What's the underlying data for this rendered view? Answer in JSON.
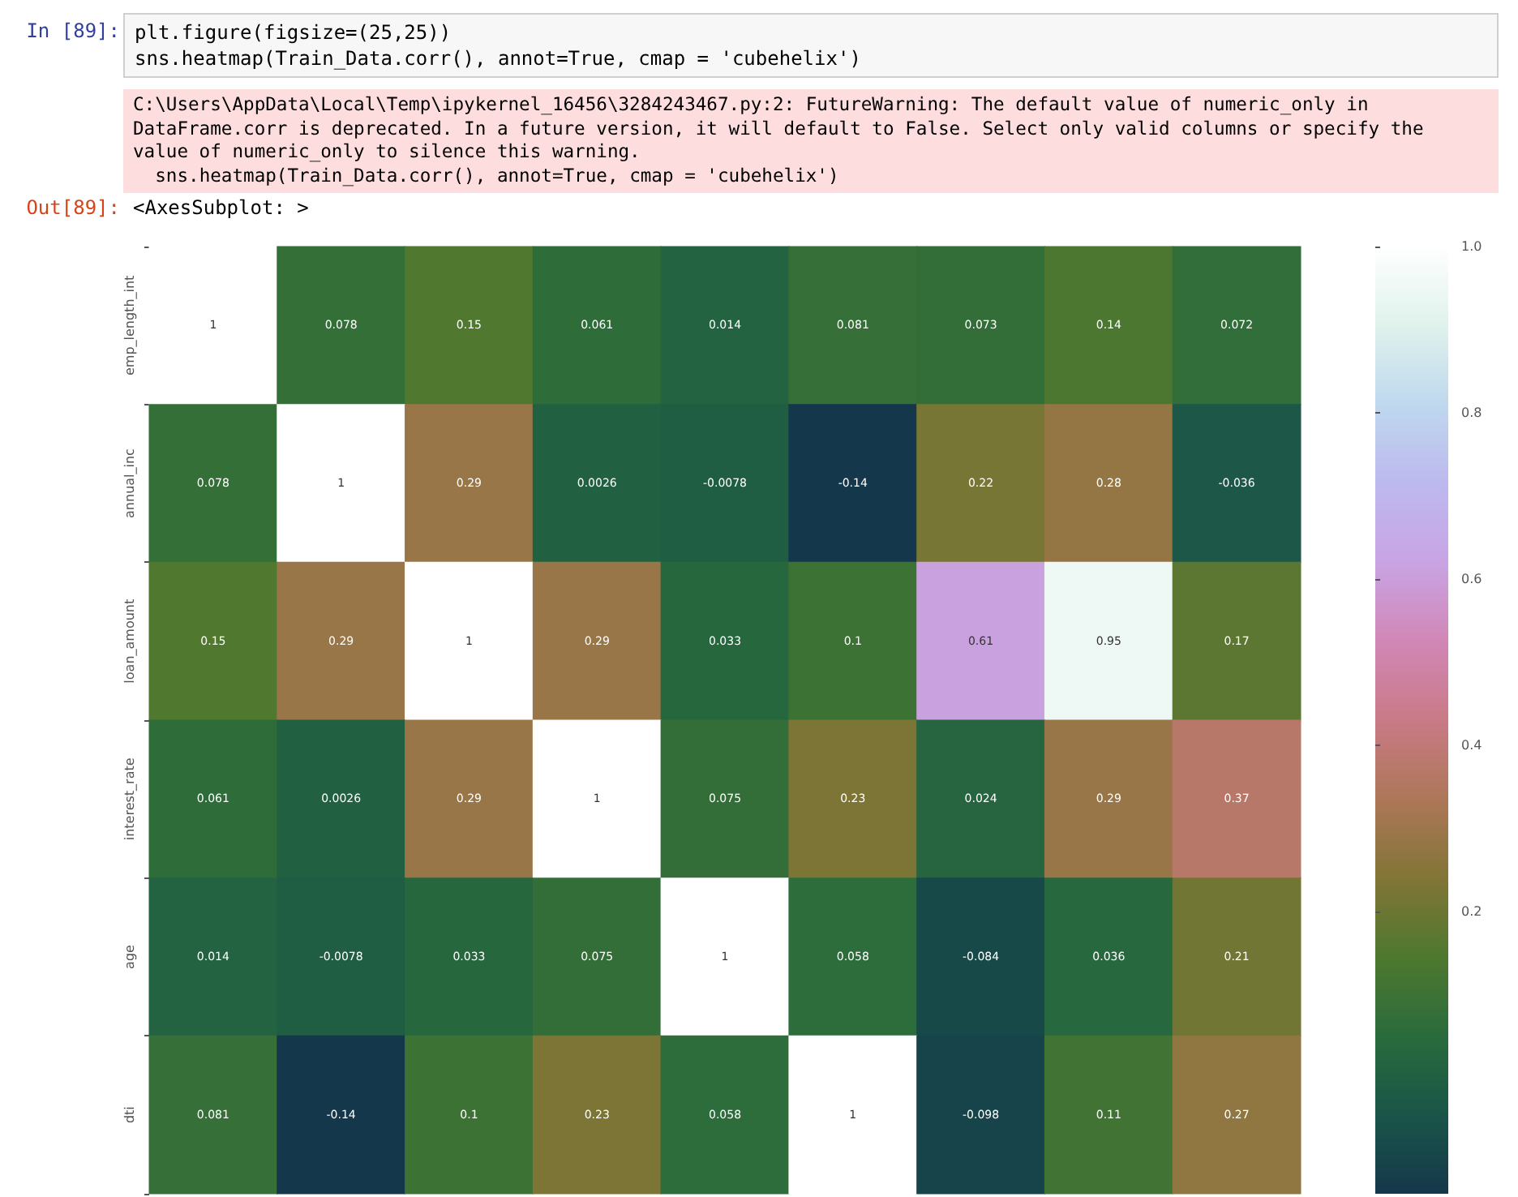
{
  "chart_data": {
    "type": "heatmap",
    "annotations": [
      "In [89]:",
      "plt.figure(figsize=(25,25))\nsns.heatmap(Train_Data.corr(), annot=True, cmap = 'cubehelix')",
      "C:\\Users\\AppData\\Local\\Temp\\ipykernel_16456\\3284243467.py:2: FutureWarning: The default value of numeric_only in DataFrame.corr is deprecated. In a future version, it will default to False. Select only valid columns or specify the value of numeric_only to silence this warning.\n  sns.heatmap(Train_Data.corr(), annot=True, cmap = 'cubehelix')",
      "Out[89]:",
      "<AxesSubplot: >"
    ],
    "categories": [
      null,
      null,
      null,
      null,
      null,
      null,
      null,
      null,
      null
    ],
    "y_categories": [
      "emp_length_int",
      "annual_inc",
      "loan_amount",
      "interest_rate",
      "age",
      "dti"
    ],
    "cells": [
      [
        1,
        0.078,
        0.15,
        0.061,
        0.014,
        0.081,
        0.073,
        0.14,
        0.072
      ],
      [
        0.078,
        1,
        0.29,
        0.0026,
        -0.0078,
        -0.14,
        0.22,
        0.28,
        -0.036
      ],
      [
        0.15,
        0.29,
        1,
        0.29,
        0.033,
        0.1,
        0.61,
        0.95,
        0.17
      ],
      [
        0.061,
        0.0026,
        0.29,
        1,
        0.075,
        0.23,
        0.024,
        0.29,
        0.37
      ],
      [
        0.014,
        -0.0078,
        0.033,
        0.075,
        1,
        0.058,
        -0.084,
        0.036,
        0.21
      ],
      [
        0.081,
        -0.14,
        0.1,
        0.23,
        0.058,
        1,
        -0.098,
        0.11,
        0.27
      ]
    ],
    "clim": [
      -0.14,
      1
    ],
    "cticks": [
      0.2,
      0.4,
      0.6,
      0.8,
      {
        "value": 1,
        "label": "1.0"
      }
    ],
    "data_labels": true,
    "tick_labels": "y"
  }
}
